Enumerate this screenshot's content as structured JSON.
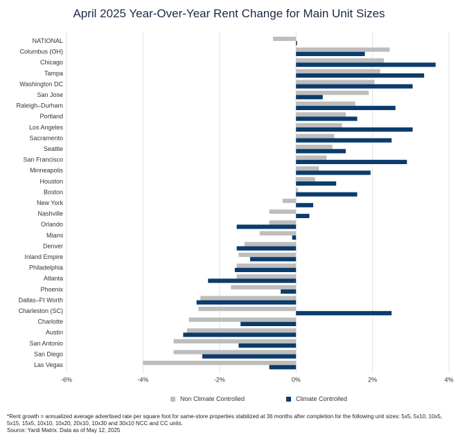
{
  "chart_data": {
    "type": "bar",
    "orientation": "horizontal",
    "title": "April 2025 Year-Over-Year Rent Change for Main Unit Sizes",
    "categories": [
      "NATIONAL",
      "Columbus (OH)",
      "Chicago",
      "Tampa",
      "Washington DC",
      "San Jose",
      "Raleigh–Durham",
      "Portland",
      "Los Angeles",
      "Sacramento",
      "Seattle",
      "San Francisco",
      "Minneapolis",
      "Houston",
      "Boston",
      "New York",
      "Nashville",
      "Orlando",
      "Miami",
      "Denver",
      "Inland Empire",
      "Philadelphia",
      "Atlanta",
      "Phoenix",
      "Dallas–Ft Worth",
      "Charleston (SC)",
      "Charlotte",
      "Austin",
      "San Antonio",
      "San Diego",
      "Las Vegas"
    ],
    "series": [
      {
        "name": "Non Climate Controlled",
        "color": "#bdbdbd",
        "values": [
          -0.6,
          2.45,
          2.3,
          2.2,
          2.05,
          1.9,
          1.55,
          1.3,
          1.2,
          1.0,
          0.95,
          0.8,
          0.6,
          0.5,
          0.05,
          -0.35,
          -0.7,
          -0.7,
          -0.95,
          -1.35,
          -1.5,
          -1.55,
          -1.55,
          -1.7,
          -2.5,
          -2.55,
          -2.8,
          -2.85,
          -3.2,
          -3.2,
          -4.0
        ]
      },
      {
        "name": "Climate Controlled",
        "color": "#0b3c6b",
        "values": [
          0.0,
          1.8,
          3.65,
          3.35,
          3.05,
          0.7,
          2.6,
          1.6,
          3.05,
          2.5,
          1.3,
          2.9,
          1.95,
          1.05,
          1.6,
          0.45,
          0.35,
          -1.55,
          -0.1,
          -1.55,
          -1.2,
          -1.6,
          -2.3,
          -0.4,
          -2.6,
          2.5,
          -1.45,
          -2.95,
          -1.5,
          -2.45,
          -0.7
        ]
      }
    ],
    "xlim": [
      -6,
      4
    ],
    "xticks": [
      -6,
      -4,
      -2,
      0,
      2,
      4
    ],
    "xtick_labels": [
      "-6%",
      "-4%",
      "-2%",
      "0%",
      "2%",
      "4%"
    ],
    "grid": "vertical",
    "legend": "bottom"
  },
  "footnote": {
    "rent_growth": "*Rent growth = annualized average advertised rate per square foot for same-store properties stabilized at 36 months after completion for the following unit sizes: 5x5, 5x10, 10x5, 5x15, 15x5, 10x10, 10x20, 20x10, 10x30 and 30x10 NCC and CC units.",
    "source": "Source: Yardi Matrix. Data as of May 12, 2025"
  }
}
